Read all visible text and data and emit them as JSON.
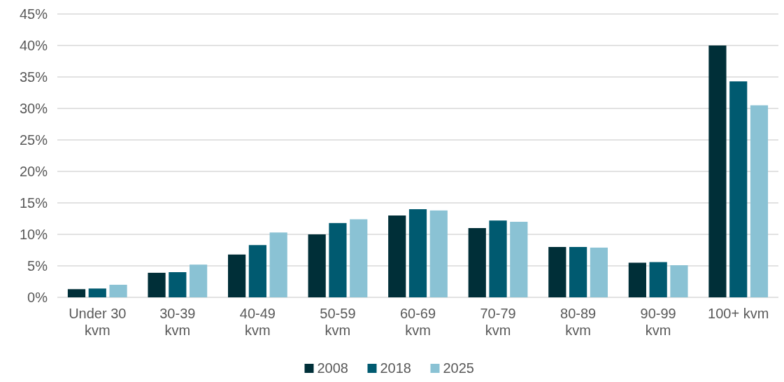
{
  "chart_data": {
    "type": "bar",
    "categories": [
      "Under 30 kvm",
      "30-39 kvm",
      "40-49 kvm",
      "50-59 kvm",
      "60-69 kvm",
      "70-79 kvm",
      "80-89 kvm",
      "90-99 kvm",
      "100+ kvm"
    ],
    "series": [
      {
        "name": "2008",
        "color": "#002f38",
        "values": [
          1.3,
          3.9,
          6.8,
          10.0,
          13.0,
          11.0,
          8.0,
          5.5,
          40.0
        ]
      },
      {
        "name": "2018",
        "color": "#005a70",
        "values": [
          1.4,
          4.0,
          8.3,
          11.8,
          14.0,
          12.2,
          8.0,
          5.6,
          34.3
        ]
      },
      {
        "name": "2025",
        "color": "#8ac2d4",
        "values": [
          2.0,
          5.2,
          10.3,
          12.4,
          13.8,
          12.0,
          7.9,
          5.1,
          30.5
        ]
      }
    ],
    "ylim": [
      0,
      45
    ],
    "yticks": [
      {
        "value": 0,
        "label": "0%"
      },
      {
        "value": 5,
        "label": "5%"
      },
      {
        "value": 10,
        "label": "10%"
      },
      {
        "value": 15,
        "label": "15%"
      },
      {
        "value": 20,
        "label": "20%"
      },
      {
        "value": 25,
        "label": "25%"
      },
      {
        "value": 30,
        "label": "30%"
      },
      {
        "value": 35,
        "label": "35%"
      },
      {
        "value": 40,
        "label": "40%"
      },
      {
        "value": 45,
        "label": "45%"
      }
    ],
    "grid": "y",
    "legend": "bottom"
  }
}
